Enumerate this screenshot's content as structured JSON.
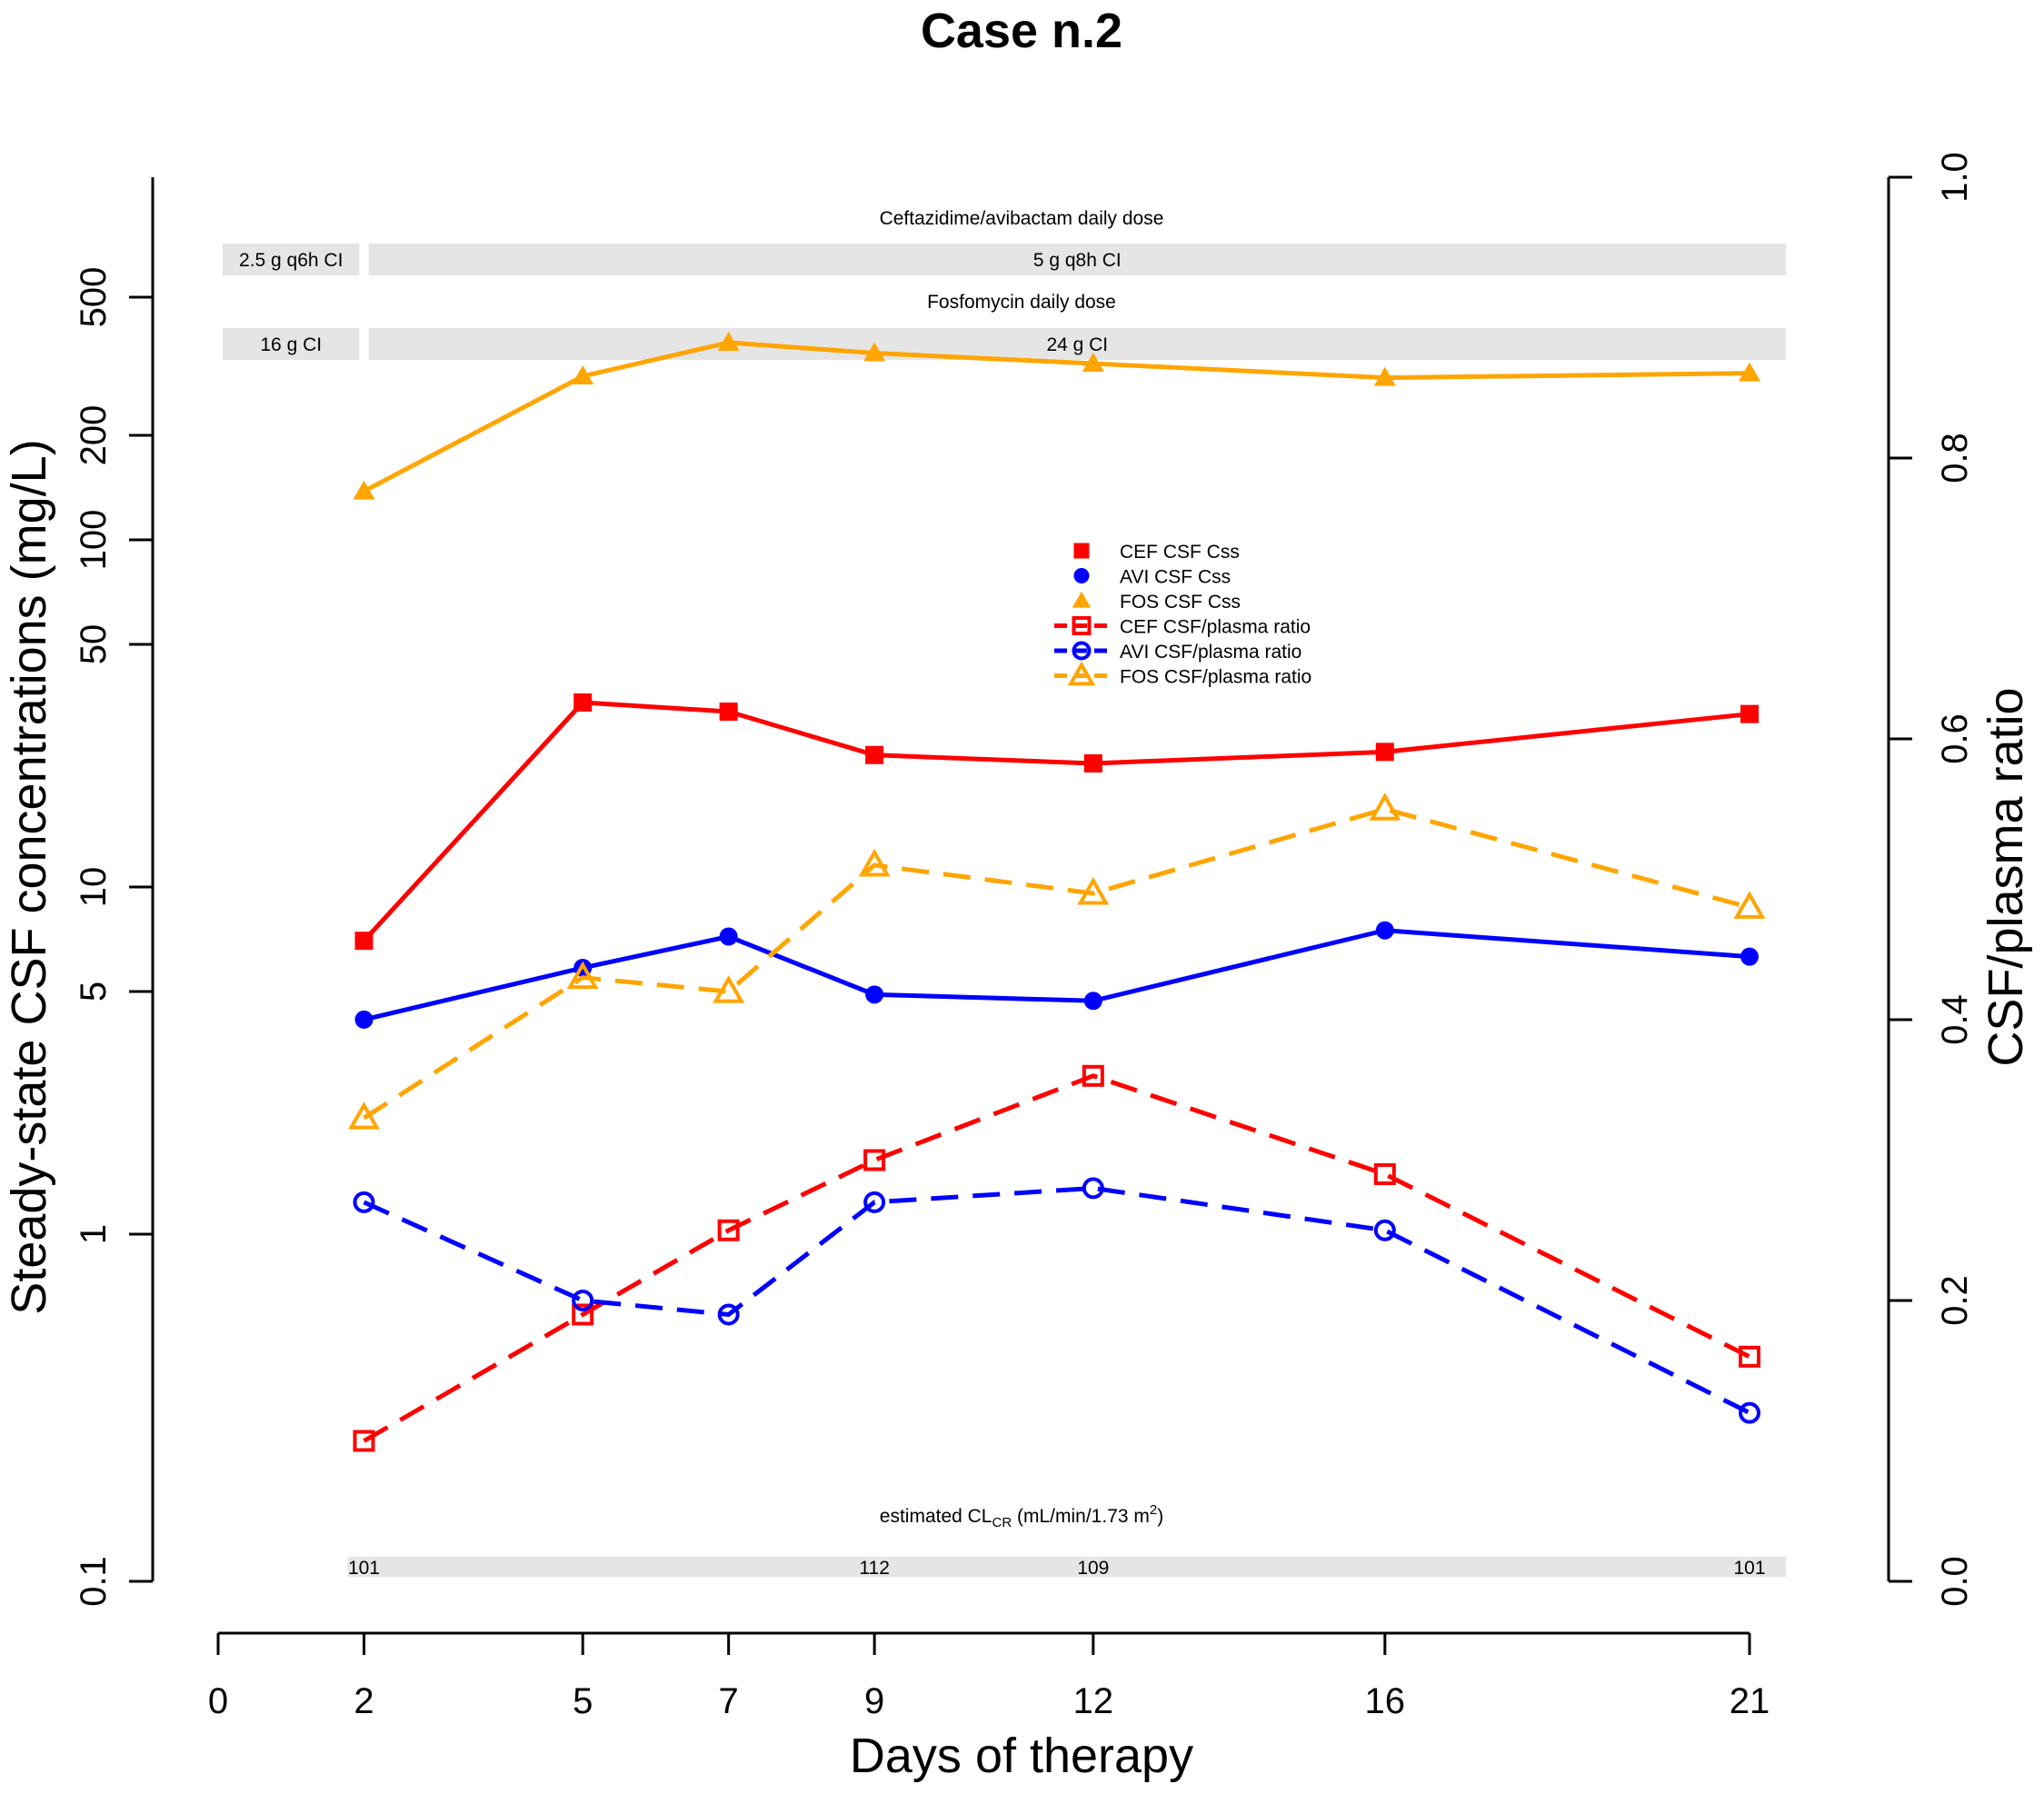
{
  "chart_data": {
    "type": "line",
    "title": "Case n.2",
    "xlabel": "Days of therapy",
    "ylabel_left": "Steady-state CSF concentrations (mg/L)",
    "ylabel_right": "CSF/plasma ratio",
    "x_ticks": [
      0,
      2,
      5,
      7,
      9,
      12,
      16,
      21
    ],
    "x_tick_labels": [
      "0",
      "2",
      "5",
      "7",
      "9",
      "12",
      "16",
      "21"
    ],
    "xlim": [
      0,
      21
    ],
    "yscale_left": "log",
    "ylim_left": [
      0.1,
      1000
    ],
    "y_ticks_left": [
      0.1,
      1,
      5,
      10,
      50,
      100,
      200,
      500
    ],
    "y_tick_labels_left": [
      "0.1",
      "1",
      "5",
      "10",
      "50",
      "100",
      "200",
      "500"
    ],
    "ylim_right": [
      0,
      1
    ],
    "y_ticks_right": [
      0,
      0.2,
      0.4,
      0.6,
      0.8,
      1.0
    ],
    "y_tick_labels_right": [
      "0.0",
      "0.2",
      "0.4",
      "0.6",
      "0.8",
      "1.0"
    ],
    "x": [
      2,
      5,
      7,
      9,
      12,
      16,
      21
    ],
    "series": [
      {
        "name": "CEF CSF Css",
        "axis": "left",
        "color": "#ff0000",
        "marker": "square-filled",
        "dash": "solid",
        "values": [
          7.0,
          34,
          32,
          24,
          22.7,
          24.5,
          31.5
        ]
      },
      {
        "name": "AVI CSF Css",
        "axis": "left",
        "color": "#0000ff",
        "marker": "circle-filled",
        "dash": "solid",
        "values": [
          4.15,
          5.85,
          7.2,
          4.9,
          4.7,
          7.5,
          6.3
        ]
      },
      {
        "name": "FOS CSF Css",
        "axis": "left",
        "color": "#ffa500",
        "marker": "triangle-filled",
        "dash": "solid",
        "values": [
          138,
          296,
          370,
          345,
          322,
          293,
          302
        ]
      },
      {
        "name": "CEF CSF/plasma ratio",
        "axis": "right",
        "color": "#ff0000",
        "marker": "square-open",
        "dash": "dashed",
        "values": [
          0.1,
          0.19,
          0.25,
          0.3,
          0.36,
          0.29,
          0.16
        ]
      },
      {
        "name": "AVI CSF/plasma ratio",
        "axis": "right",
        "color": "#0000ff",
        "marker": "circle-open",
        "dash": "dashed",
        "values": [
          0.27,
          0.2,
          0.19,
          0.27,
          0.28,
          0.25,
          0.12
        ]
      },
      {
        "name": "FOS CSF/plasma ratio",
        "axis": "right",
        "color": "#ffa500",
        "marker": "triangle-open",
        "dash": "dashed",
        "values": [
          0.33,
          0.43,
          0.42,
          0.51,
          0.49,
          0.55,
          0.48
        ]
      }
    ],
    "legend": {
      "position": "center",
      "entries": [
        "CEF CSF Css",
        "AVI CSF Css",
        "FOS CSF Css",
        "CEF CSF/plasma ratio",
        "AVI CSF/plasma ratio",
        "FOS CSF/plasma ratio"
      ]
    },
    "dosing": {
      "cef_avi_title": "Ceftazidime/avibactam daily dose",
      "cef_avi_segments": [
        {
          "label": "2.5 g q6h CI",
          "start_day": 0,
          "end_day": 2
        },
        {
          "label": "5 g q8h CI",
          "start_day": 2,
          "end_day": 21.5
        }
      ],
      "fos_title": "Fosfomycin daily dose",
      "fos_segments": [
        {
          "label": "16 g CI",
          "start_day": 0,
          "end_day": 2
        },
        {
          "label": "24 g CI",
          "start_day": 2,
          "end_day": 21.5
        }
      ]
    },
    "crcl": {
      "title_prefix": "estimated CL",
      "title_subscript": "CR",
      "title_units_prefix": " (mL/min/1.73 m",
      "title_superscript": "2",
      "title_units_suffix": ")",
      "start_day": 2,
      "end_day": 21.5,
      "values": [
        {
          "day": 2,
          "label": "101"
        },
        {
          "day": 9,
          "label": "112"
        },
        {
          "day": 12,
          "label": "109"
        },
        {
          "day": 21,
          "label": "101"
        }
      ]
    }
  }
}
